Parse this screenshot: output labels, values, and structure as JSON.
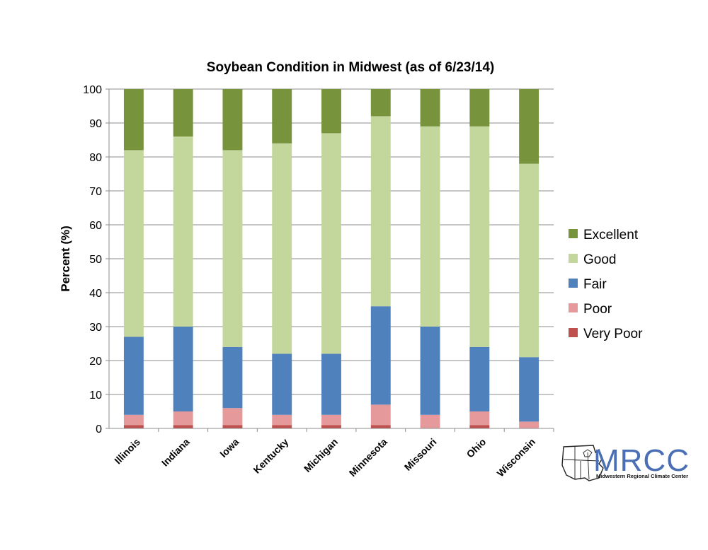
{
  "chart_data": {
    "type": "bar",
    "stacked": true,
    "title": "Soybean Condition in Midwest (as of 6/23/14)",
    "ylabel": "Percent (%)",
    "xlabel": "",
    "ylim": [
      0,
      100
    ],
    "yticks": [
      0,
      10,
      20,
      30,
      40,
      50,
      60,
      70,
      80,
      90,
      100
    ],
    "grid": "horizontal",
    "legend_position": "right",
    "categories": [
      "Illinois",
      "Indiana",
      "Iowa",
      "Kentucky",
      "Michigan",
      "Minnesota",
      "Missouri",
      "Ohio",
      "Wisconsin"
    ],
    "series": [
      {
        "name": "Very Poor",
        "color": "#c0504d",
        "values": [
          1,
          1,
          1,
          1,
          1,
          1,
          0,
          1,
          0
        ]
      },
      {
        "name": "Poor",
        "color": "#e6999b",
        "values": [
          3,
          4,
          5,
          3,
          3,
          6,
          4,
          4,
          2
        ]
      },
      {
        "name": "Fair",
        "color": "#4f81bd",
        "values": [
          23,
          25,
          18,
          18,
          18,
          29,
          26,
          19,
          19
        ]
      },
      {
        "name": "Good",
        "color": "#c3d69b",
        "values": [
          55,
          56,
          58,
          62,
          65,
          56,
          59,
          65,
          57
        ]
      },
      {
        "name": "Excellent",
        "color": "#77933c",
        "values": [
          18,
          14,
          18,
          16,
          13,
          8,
          11,
          11,
          22
        ]
      }
    ],
    "legend_order": [
      "Excellent",
      "Good",
      "Fair",
      "Poor",
      "Very Poor"
    ]
  },
  "logo": {
    "name": "MRCC",
    "subtitle": "Midwestern Regional Climate Center",
    "color": "#4a6fb5"
  }
}
